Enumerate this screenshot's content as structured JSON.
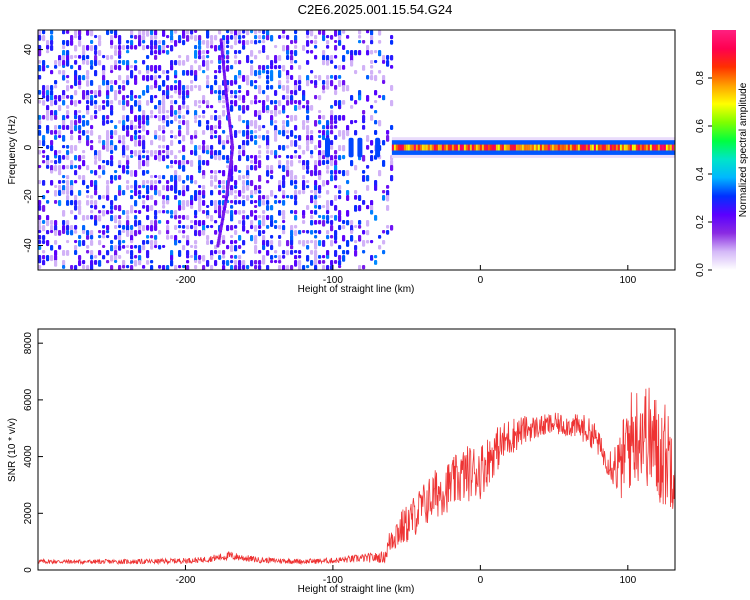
{
  "chart_data": [
    {
      "type": "heatmap",
      "title": "C2E6.2025.001.15.54.G24",
      "xlabel": "Height of straight line (km)",
      "ylabel": "Frequency (Hz)",
      "xlim": [
        -300,
        132
      ],
      "ylim": [
        -50,
        48
      ],
      "xticks": [
        -200,
        -100,
        0,
        100
      ],
      "yticks": [
        -40,
        -20,
        0,
        20,
        40
      ],
      "grid": false,
      "colorbar": {
        "label": "Normalized spectral amplitude",
        "range": [
          0,
          1
        ],
        "ticks": [
          0.0,
          0.2,
          0.4,
          0.6,
          0.8
        ],
        "colors": [
          "#ffffff",
          "#d4b8f8",
          "#8a2be2",
          "#5a00ff",
          "#0030ff",
          "#00b7ff",
          "#00e5c8",
          "#00ff40",
          "#7fff00",
          "#ffff00",
          "#ffa000",
          "#ff3000",
          "#ff0050",
          "#ff2080"
        ]
      },
      "regions": [
        {
          "name": "noise",
          "x": [
            -300,
            -60
          ],
          "y": [
            -50,
            48
          ],
          "amplitude": 0.3
        },
        {
          "name": "carrier",
          "x": [
            -60,
            132
          ],
          "y_center": 0,
          "y_halfwidth": 3,
          "amplitude_range": [
            0.5,
            0.95
          ]
        },
        {
          "name": "diagonal streak",
          "points": [
            [
              -178,
              -40
            ],
            [
              -172,
              -20
            ],
            [
              -168,
              0
            ],
            [
              -172,
              20
            ],
            [
              -176,
              45
            ]
          ],
          "amplitude": 0.3
        }
      ]
    },
    {
      "type": "line",
      "xlabel": "Height of straight line (km)",
      "ylabel": "SNR (10 * v/v)",
      "xlim": [
        -300,
        132
      ],
      "ylim": [
        0,
        8500
      ],
      "xticks": [
        -200,
        -100,
        0,
        100
      ],
      "yticks": [
        0,
        2000,
        4000,
        6000,
        8000
      ],
      "grid": false,
      "color": "#ee3333",
      "envelope": {
        "x": [
          -300,
          -260,
          -220,
          -190,
          -170,
          -150,
          -120,
          -100,
          -80,
          -65,
          -60,
          -50,
          -40,
          -30,
          -20,
          -10,
          0,
          10,
          20,
          30,
          40,
          50,
          60,
          70,
          78,
          85,
          95,
          100,
          110,
          120,
          132
        ],
        "mean": [
          300,
          290,
          300,
          350,
          500,
          350,
          300,
          330,
          420,
          450,
          1200,
          1600,
          2200,
          2700,
          3000,
          3400,
          3500,
          4200,
          4700,
          4950,
          5050,
          5150,
          5100,
          5000,
          4700,
          3900,
          3600,
          4500,
          5000,
          4200,
          3900
        ],
        "spread": [
          80,
          80,
          90,
          100,
          150,
          100,
          90,
          100,
          150,
          200,
          600,
          700,
          800,
          900,
          900,
          1000,
          1000,
          800,
          700,
          500,
          400,
          400,
          400,
          500,
          500,
          400,
          1200,
          1800,
          1800,
          2000,
          1800
        ]
      }
    }
  ]
}
